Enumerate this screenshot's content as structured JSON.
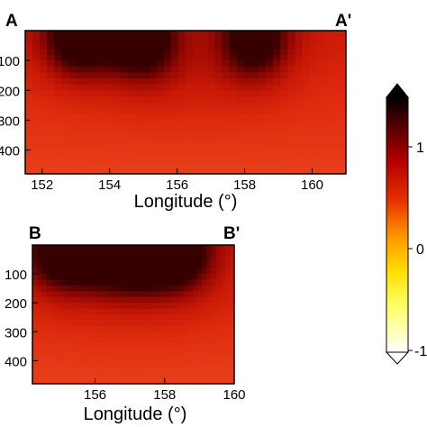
{
  "chart_data": [
    {
      "type": "heatmap",
      "panel": "A-A'",
      "start_label": "A",
      "end_label": "A'",
      "xlabel": "Longitude (°)",
      "ylabel": "",
      "xlim": [
        151.5,
        161
      ],
      "ylim": [
        0,
        480
      ],
      "x_ticks": [
        "152",
        "154",
        "156",
        "158",
        "160"
      ],
      "y_ticks": [
        "100",
        "200",
        "300",
        "400"
      ],
      "hotspots_longitude": [
        153,
        155,
        158.3
      ],
      "hotspot_depth": 40
    },
    {
      "type": "heatmap",
      "panel": "B-B'",
      "start_label": "B",
      "end_label": "B'",
      "xlabel": "Longitude (°)",
      "ylabel": "",
      "xlim": [
        154.2,
        160
      ],
      "ylim": [
        0,
        480
      ],
      "x_ticks": [
        "156",
        "158",
        "160"
      ],
      "y_ticks": [
        "100",
        "200",
        "300",
        "400"
      ],
      "hotspots_longitude": [
        155,
        156.8,
        158.4
      ],
      "hotspot_depth": 40
    }
  ],
  "colorbar": {
    "tick_labels": [
      "1",
      "0",
      "-1"
    ],
    "colors": [
      "#ffffff",
      "#ffff00",
      "#ff9900",
      "#e32400",
      "#b50000",
      "#5a0000",
      "#000000"
    ]
  }
}
